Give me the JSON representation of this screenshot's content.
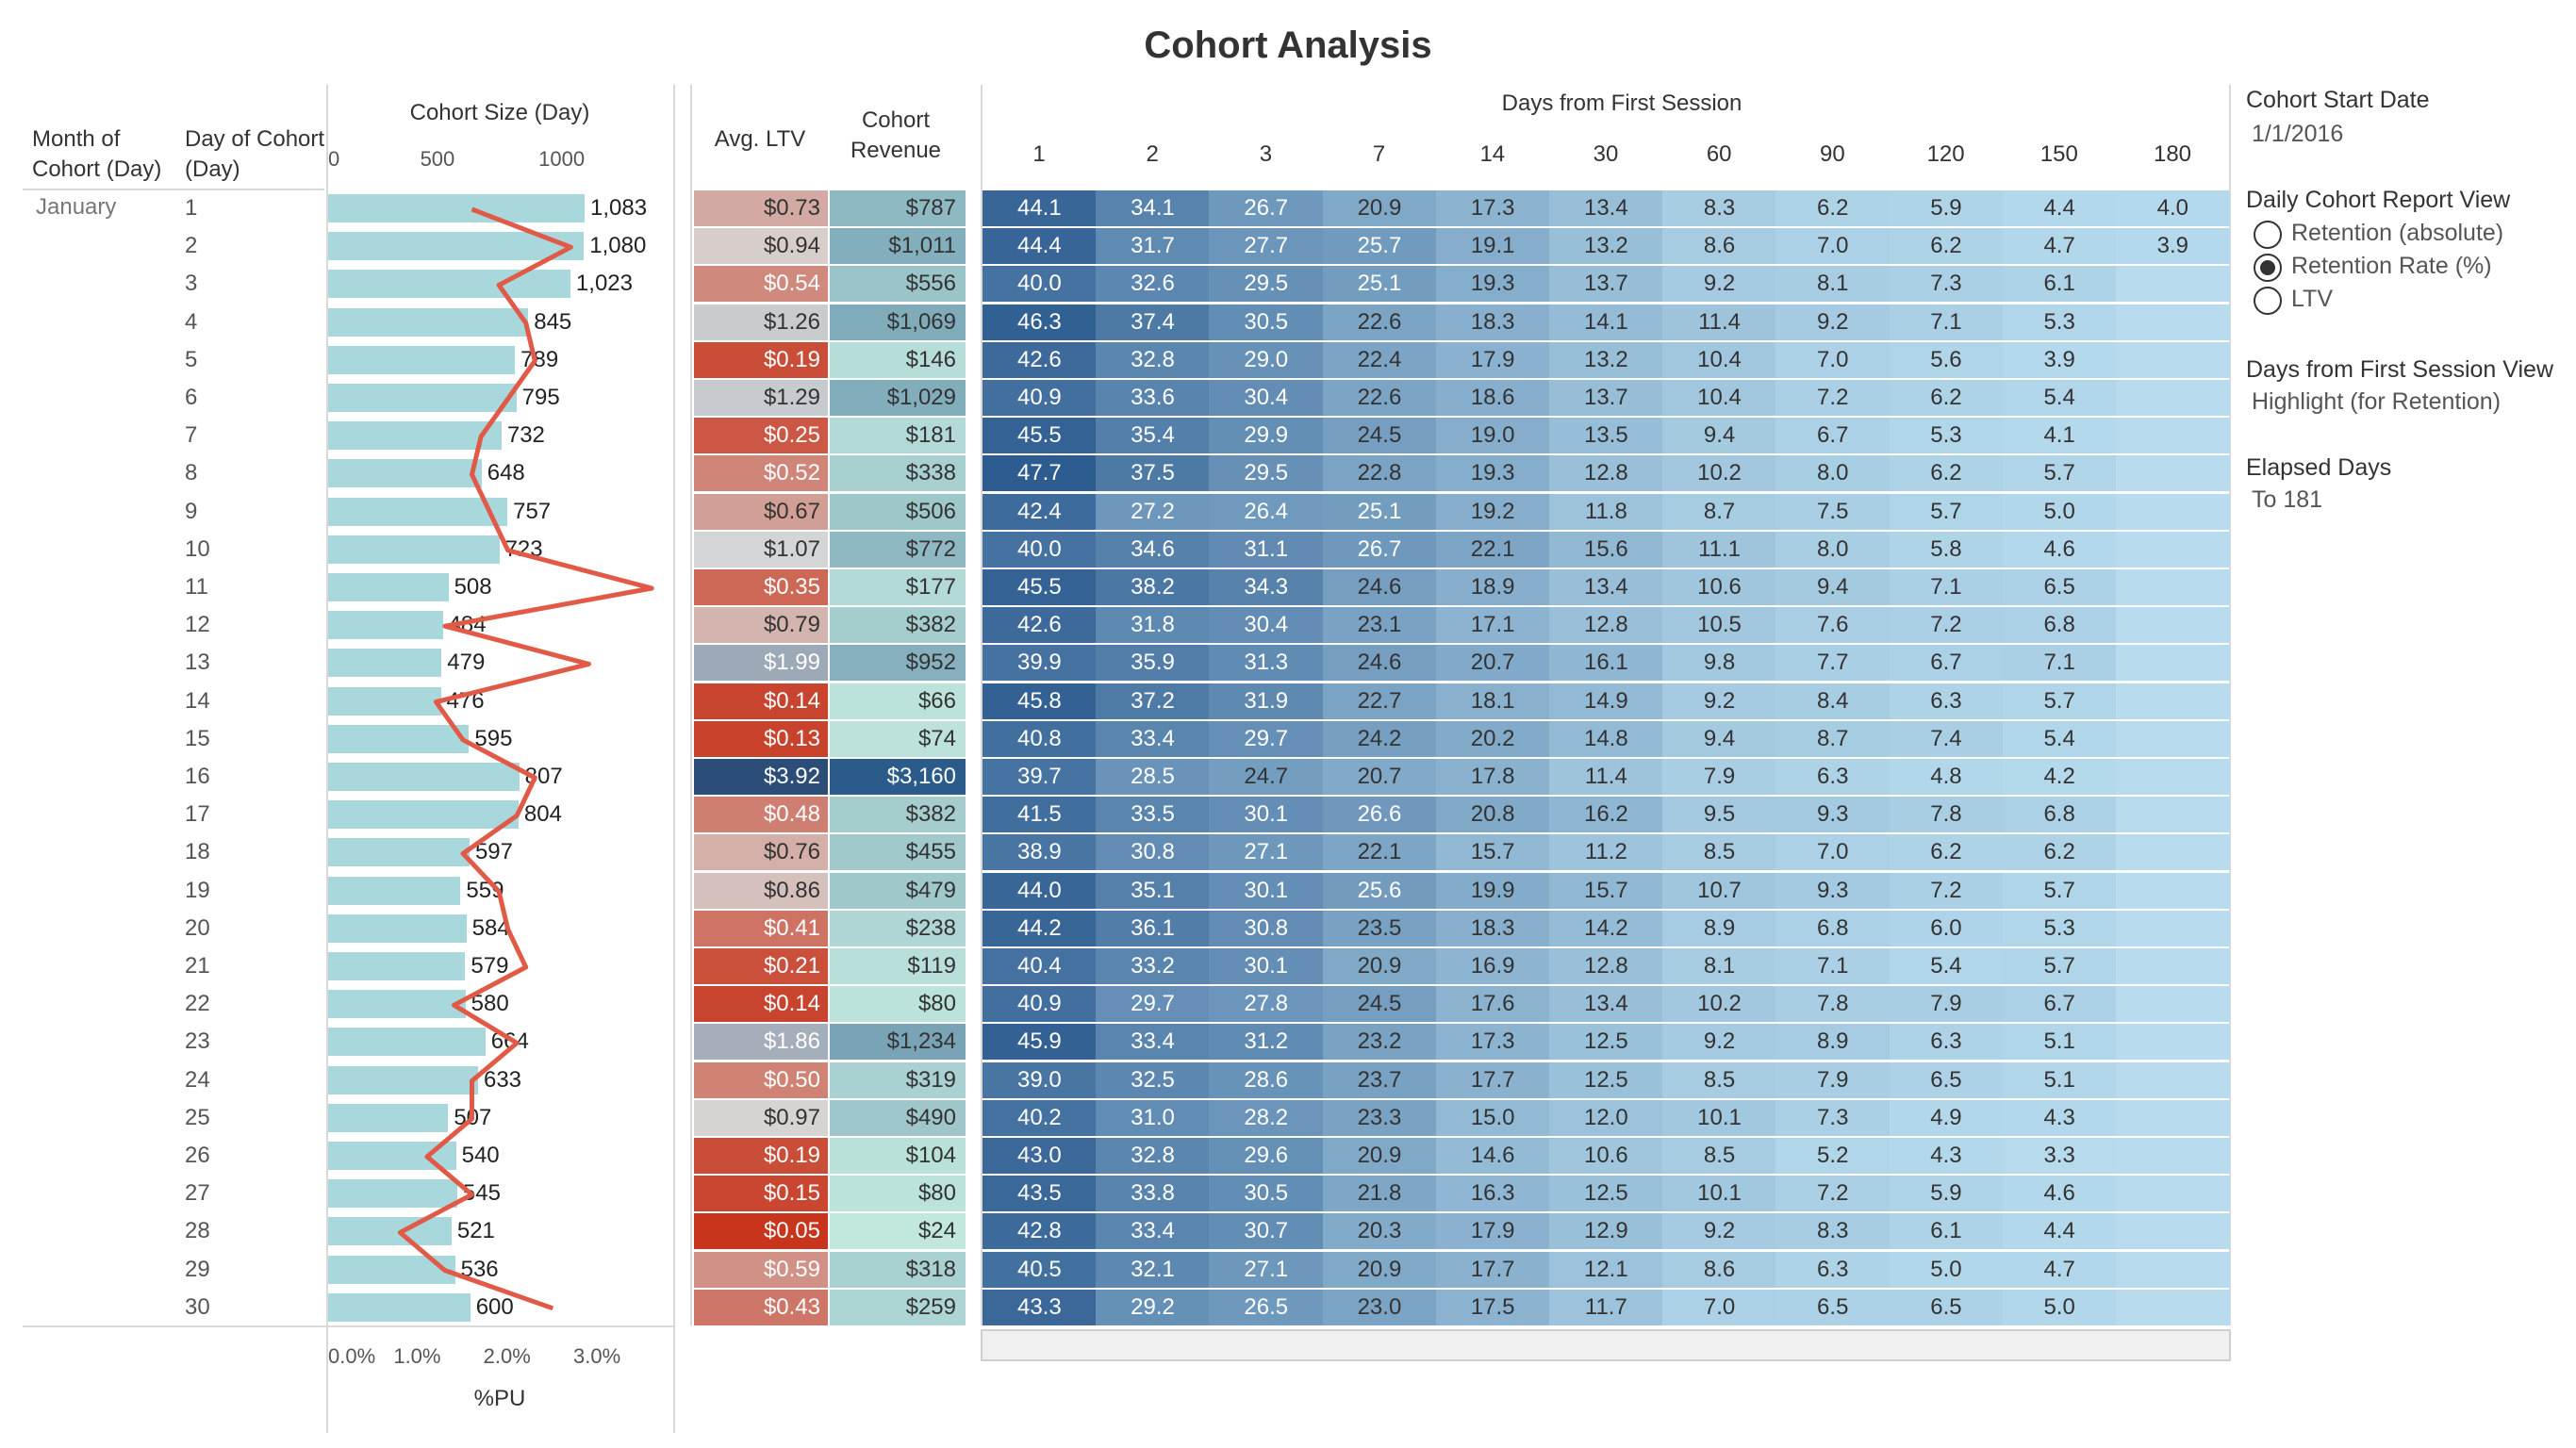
{
  "title": "Cohort Analysis",
  "headers": {
    "month_of_cohort": "Month of Cohort (Day)",
    "day_of_cohort": "Day of Cohort (Day)",
    "cohort_size": "Cohort Size (Day)",
    "avg_ltv": "Avg. LTV",
    "cohort_revenue": "Cohort Revenue",
    "days_from_first_session": "Days from First Session",
    "pu_axis": "%PU"
  },
  "month": "January",
  "size_axis_ticks": [
    "0",
    "500",
    "1000"
  ],
  "pu_axis_ticks": [
    "0.0%",
    "1.0%",
    "2.0%",
    "3.0%"
  ],
  "day_columns": [
    "1",
    "2",
    "3",
    "7",
    "14",
    "30",
    "60",
    "90",
    "120",
    "150",
    "180"
  ],
  "chart_data": {
    "type": "table",
    "days": [
      "1",
      "2",
      "3",
      "4",
      "5",
      "6",
      "7",
      "8",
      "9",
      "10",
      "11",
      "12",
      "13",
      "14",
      "15",
      "16",
      "17",
      "18",
      "19",
      "20",
      "21",
      "22",
      "23",
      "24",
      "25",
      "26",
      "27",
      "28",
      "29",
      "30"
    ],
    "cohort_size": [
      1083,
      1080,
      1023,
      845,
      789,
      795,
      732,
      648,
      757,
      723,
      508,
      484,
      479,
      476,
      595,
      807,
      804,
      597,
      559,
      584,
      579,
      580,
      664,
      633,
      507,
      540,
      545,
      521,
      536,
      600
    ],
    "cohort_size_labels": [
      "1,083",
      "1,080",
      "1,023",
      "845",
      "789",
      "795",
      "732",
      "648",
      "757",
      "723",
      "508",
      "484",
      "479",
      "476",
      "595",
      "807",
      "804",
      "597",
      "559",
      "584",
      "579",
      "580",
      "664",
      "633",
      "507",
      "540",
      "545",
      "521",
      "536",
      "600"
    ],
    "size_xlim": [
      0,
      1450
    ],
    "pu_percent": [
      1.6,
      2.7,
      1.9,
      2.2,
      2.3,
      2.0,
      1.7,
      1.6,
      1.8,
      2.0,
      3.6,
      1.3,
      2.9,
      1.2,
      1.5,
      2.3,
      2.1,
      1.5,
      1.9,
      2.0,
      2.2,
      1.4,
      2.1,
      1.6,
      1.6,
      1.1,
      1.6,
      0.8,
      1.3,
      2.5
    ],
    "pu_xlim": [
      0,
      3.6
    ],
    "avg_ltv": [
      "$0.73",
      "$0.94",
      "$0.54",
      "$1.26",
      "$0.19",
      "$1.29",
      "$0.25",
      "$0.52",
      "$0.67",
      "$1.07",
      "$0.35",
      "$0.79",
      "$1.99",
      "$0.14",
      "$0.13",
      "$3.92",
      "$0.48",
      "$0.76",
      "$0.86",
      "$0.41",
      "$0.21",
      "$0.14",
      "$1.86",
      "$0.50",
      "$0.97",
      "$0.19",
      "$0.15",
      "$0.05",
      "$0.59",
      "$0.43"
    ],
    "cohort_revenue": [
      "$787",
      "$1,011",
      "$556",
      "$1,069",
      "$146",
      "$1,029",
      "$181",
      "$338",
      "$506",
      "$772",
      "$177",
      "$382",
      "$952",
      "$66",
      "$74",
      "$3,160",
      "$382",
      "$455",
      "$479",
      "$238",
      "$119",
      "$80",
      "$1,234",
      "$319",
      "$490",
      "$104",
      "$80",
      "$24",
      "$318",
      "$259"
    ],
    "retention_rate": [
      [
        "44.1",
        "34.1",
        "26.7",
        "20.9",
        "17.3",
        "13.4",
        "8.3",
        "6.2",
        "5.9",
        "4.4",
        "4.0"
      ],
      [
        "44.4",
        "31.7",
        "27.7",
        "25.7",
        "19.1",
        "13.2",
        "8.6",
        "7.0",
        "6.2",
        "4.7",
        "3.9"
      ],
      [
        "40.0",
        "32.6",
        "29.5",
        "25.1",
        "19.3",
        "13.7",
        "9.2",
        "8.1",
        "7.3",
        "6.1",
        ""
      ],
      [
        "46.3",
        "37.4",
        "30.5",
        "22.6",
        "18.3",
        "14.1",
        "11.4",
        "9.2",
        "7.1",
        "5.3",
        ""
      ],
      [
        "42.6",
        "32.8",
        "29.0",
        "22.4",
        "17.9",
        "13.2",
        "10.4",
        "7.0",
        "5.6",
        "3.9",
        ""
      ],
      [
        "40.9",
        "33.6",
        "30.4",
        "22.6",
        "18.6",
        "13.7",
        "10.4",
        "7.2",
        "6.2",
        "5.4",
        ""
      ],
      [
        "45.5",
        "35.4",
        "29.9",
        "24.5",
        "19.0",
        "13.5",
        "9.4",
        "6.7",
        "5.3",
        "4.1",
        ""
      ],
      [
        "47.7",
        "37.5",
        "29.5",
        "22.8",
        "19.3",
        "12.8",
        "10.2",
        "8.0",
        "6.2",
        "5.7",
        ""
      ],
      [
        "42.4",
        "27.2",
        "26.4",
        "25.1",
        "19.2",
        "11.8",
        "8.7",
        "7.5",
        "5.7",
        "5.0",
        ""
      ],
      [
        "40.0",
        "34.6",
        "31.1",
        "26.7",
        "22.1",
        "15.6",
        "11.1",
        "8.0",
        "5.8",
        "4.6",
        ""
      ],
      [
        "45.5",
        "38.2",
        "34.3",
        "24.6",
        "18.9",
        "13.4",
        "10.6",
        "9.4",
        "7.1",
        "6.5",
        ""
      ],
      [
        "42.6",
        "31.8",
        "30.4",
        "23.1",
        "17.1",
        "12.8",
        "10.5",
        "7.6",
        "7.2",
        "6.8",
        ""
      ],
      [
        "39.9",
        "35.9",
        "31.3",
        "24.6",
        "20.7",
        "16.1",
        "9.8",
        "7.7",
        "6.7",
        "7.1",
        ""
      ],
      [
        "45.8",
        "37.2",
        "31.9",
        "22.7",
        "18.1",
        "14.9",
        "9.2",
        "8.4",
        "6.3",
        "5.7",
        ""
      ],
      [
        "40.8",
        "33.4",
        "29.7",
        "24.2",
        "20.2",
        "14.8",
        "9.4",
        "8.7",
        "7.4",
        "5.4",
        ""
      ],
      [
        "39.7",
        "28.5",
        "24.7",
        "20.7",
        "17.8",
        "11.4",
        "7.9",
        "6.3",
        "4.8",
        "4.2",
        ""
      ],
      [
        "41.5",
        "33.5",
        "30.1",
        "26.6",
        "20.8",
        "16.2",
        "9.5",
        "9.3",
        "7.8",
        "6.8",
        ""
      ],
      [
        "38.9",
        "30.8",
        "27.1",
        "22.1",
        "15.7",
        "11.2",
        "8.5",
        "7.0",
        "6.2",
        "6.2",
        ""
      ],
      [
        "44.0",
        "35.1",
        "30.1",
        "25.6",
        "19.9",
        "15.7",
        "10.7",
        "9.3",
        "7.2",
        "5.7",
        ""
      ],
      [
        "44.2",
        "36.1",
        "30.8",
        "23.5",
        "18.3",
        "14.2",
        "8.9",
        "6.8",
        "6.0",
        "5.3",
        ""
      ],
      [
        "40.4",
        "33.2",
        "30.1",
        "20.9",
        "16.9",
        "12.8",
        "8.1",
        "7.1",
        "5.4",
        "5.7",
        ""
      ],
      [
        "40.9",
        "29.7",
        "27.8",
        "24.5",
        "17.6",
        "13.4",
        "10.2",
        "7.8",
        "7.9",
        "6.7",
        ""
      ],
      [
        "45.9",
        "33.4",
        "31.2",
        "23.2",
        "17.3",
        "12.5",
        "9.2",
        "8.9",
        "6.3",
        "5.1",
        ""
      ],
      [
        "39.0",
        "32.5",
        "28.6",
        "23.7",
        "17.7",
        "12.5",
        "8.5",
        "7.9",
        "6.5",
        "5.1",
        ""
      ],
      [
        "40.2",
        "31.0",
        "28.2",
        "23.3",
        "15.0",
        "12.0",
        "10.1",
        "7.3",
        "4.9",
        "4.3",
        ""
      ],
      [
        "43.0",
        "32.8",
        "29.6",
        "20.9",
        "14.6",
        "10.6",
        "8.5",
        "5.2",
        "4.3",
        "3.3",
        ""
      ],
      [
        "43.5",
        "33.8",
        "30.5",
        "21.8",
        "16.3",
        "12.5",
        "10.1",
        "7.2",
        "5.9",
        "4.6",
        ""
      ],
      [
        "42.8",
        "33.4",
        "30.7",
        "20.3",
        "17.9",
        "12.9",
        "9.2",
        "8.3",
        "6.1",
        "4.4",
        ""
      ],
      [
        "40.5",
        "32.1",
        "27.1",
        "20.9",
        "17.7",
        "12.1",
        "8.6",
        "6.3",
        "5.0",
        "4.7",
        ""
      ],
      [
        "43.3",
        "29.2",
        "26.5",
        "23.0",
        "17.5",
        "11.7",
        "7.0",
        "6.5",
        "6.5",
        "5.0",
        ""
      ]
    ]
  },
  "colors": {
    "bar": "#a8d8dc",
    "pu_line": "#e05a47",
    "ltv_low": "#c72c12",
    "ltv_mid": "#d8d8d8",
    "ltv_high": "#2b4d78",
    "rev_low": "#c5ebe0",
    "rev_high": "#2a5b8a",
    "ret_low": "#b8dcee",
    "ret_high": "#2c5b8f"
  },
  "panel": {
    "cohort_start_title": "Cohort Start Date",
    "cohort_start_value": "1/1/2016",
    "report_view_title": "Daily Cohort Report View",
    "options": [
      "Retention (absolute)",
      "Retention Rate (%)",
      "LTV"
    ],
    "selected_index": 1,
    "days_view_title": "Days from First Session View",
    "days_view_value": "Highlight (for Retention)",
    "elapsed_title": "Elapsed Days",
    "elapsed_value": "To 181"
  }
}
